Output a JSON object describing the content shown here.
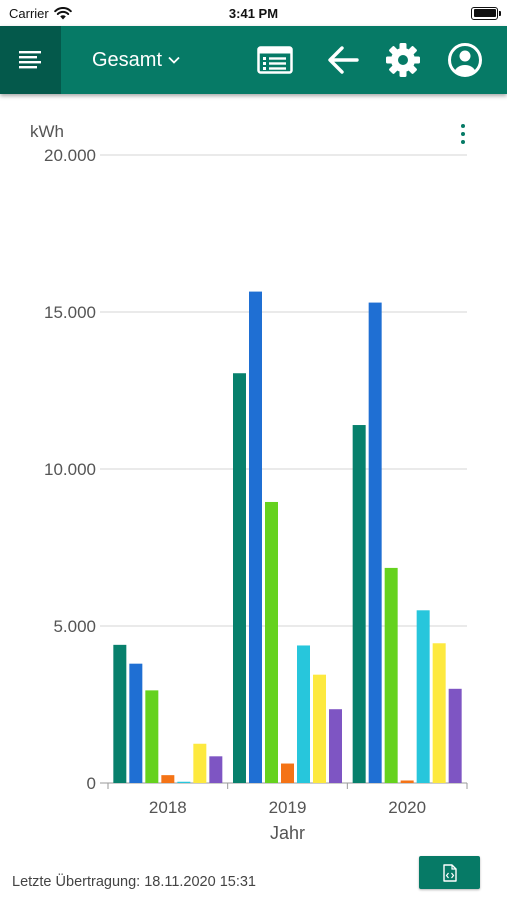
{
  "status_bar": {
    "carrier": "Carrier",
    "time": "3:41 PM"
  },
  "app_bar": {
    "title": "Gesamt",
    "icons": [
      "menu-icon",
      "chevron-down-icon",
      "list-view-icon",
      "back-arrow-icon",
      "gear-icon",
      "user-account-icon"
    ]
  },
  "colors": {
    "primary": "#067a66",
    "primary_dark": "#04594b"
  },
  "chart": {
    "unit": "kWh",
    "more_icon": "more-vertical-icon"
  },
  "chart_data": {
    "type": "bar",
    "categories": [
      "2018",
      "2019",
      "2020"
    ],
    "xlabel": "Jahr",
    "ylabel": "kWh",
    "ylim": [
      0,
      20000
    ],
    "yticks": [
      0,
      5000,
      10000,
      15000,
      20000
    ],
    "ytick_labels": [
      "0",
      "5.000",
      "10.000",
      "15.000",
      "20.000"
    ],
    "grid": true,
    "legend": "none",
    "series": [
      {
        "color": "#07806c",
        "values": [
          4400,
          13050,
          11400
        ]
      },
      {
        "color": "#1f6fd3",
        "values": [
          3800,
          15650,
          15300
        ]
      },
      {
        "color": "#65d21e",
        "values": [
          2950,
          8950,
          6850
        ]
      },
      {
        "color": "#f47316",
        "values": [
          250,
          620,
          80
        ]
      },
      {
        "color": "#27c6dc",
        "values": [
          40,
          4380,
          5500
        ]
      },
      {
        "color": "#fde93f",
        "values": [
          1250,
          3450,
          4450
        ]
      },
      {
        "color": "#7e55c3",
        "values": [
          850,
          2350,
          3000
        ]
      }
    ]
  },
  "footer": {
    "last_transfer": "Letzte Übertragung: 18.11.2020 15:31",
    "export_icon": "file-code-icon"
  }
}
